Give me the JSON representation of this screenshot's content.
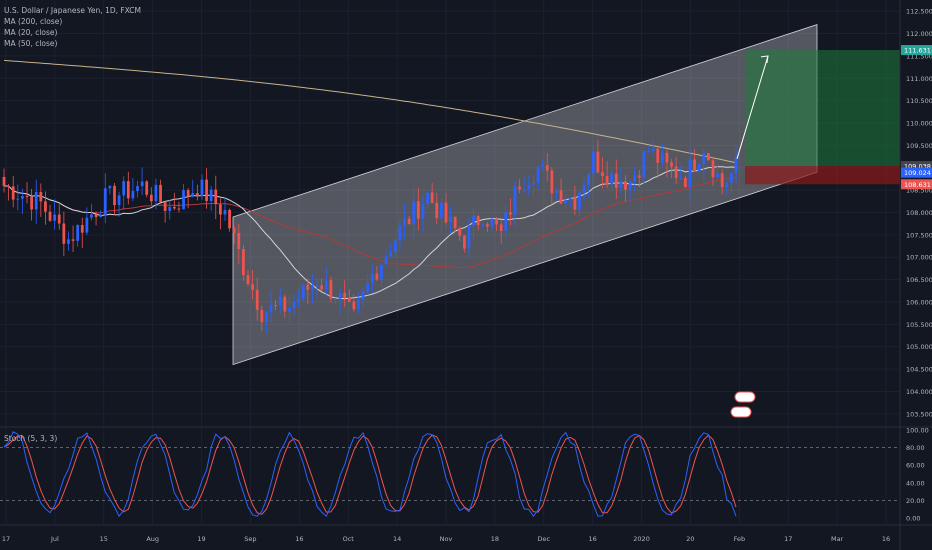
{
  "legend": {
    "symbol": "U.S. Dollar / Japanese Yen, 1D, FXCM",
    "ma200": "MA (200, close)",
    "ma20": "MA (20, close)",
    "ma50": "MA (50, close)"
  },
  "stoch_label": "Stoch (5, 3, 3)",
  "colors": {
    "background": "#131722",
    "up": "#2962ff",
    "down": "#ef5350",
    "ma200": "#c8b28a",
    "ma20": "#d1d4dc",
    "ma50": "#b23a3a",
    "stoch_k": "#2962ff",
    "stoch_d": "#ef5350",
    "channel": "#ffffff",
    "target": "#1e7b3a",
    "stop": "#8b1a1a"
  },
  "price_badges": {
    "target": "111.631",
    "last": "109.038",
    "current": "109.024",
    "stop": "108.631"
  },
  "chart_data": {
    "type": "candlestick",
    "title": "",
    "x_tick_labels": [
      "17",
      "Jul",
      "15",
      "Aug",
      "19",
      "Sep",
      "16",
      "Oct",
      "14",
      "Nov",
      "18",
      "Dec",
      "16",
      "2020",
      "20",
      "Feb",
      "17",
      "Mar",
      "16"
    ],
    "y_tick_labels": [
      "112.500",
      "112.000",
      "111.500",
      "111.000",
      "110.500",
      "110.000",
      "109.500",
      "109.000",
      "108.500",
      "108.000",
      "107.500",
      "107.000",
      "106.500",
      "106.000",
      "105.500",
      "105.000",
      "104.500",
      "104.000",
      "103.500"
    ],
    "ylim": [
      103.25,
      112.75
    ],
    "channel": {
      "type": "parallel-channel",
      "upper_start": 107.9,
      "upper_end": 112.2,
      "lower_start": 104.6,
      "lower_end": 108.9
    },
    "position": {
      "type": "long",
      "entry": 109.038,
      "target": 111.631,
      "stop": 108.631
    },
    "arrow": {
      "from": 109.2,
      "to": 111.5
    },
    "stoch_y_tick_labels": [
      "100.00",
      "80.00",
      "60.00",
      "40.00",
      "20.00",
      "0.00"
    ],
    "stoch_ylim": [
      0,
      100
    ],
    "stoch_levels": [
      80,
      20
    ]
  }
}
